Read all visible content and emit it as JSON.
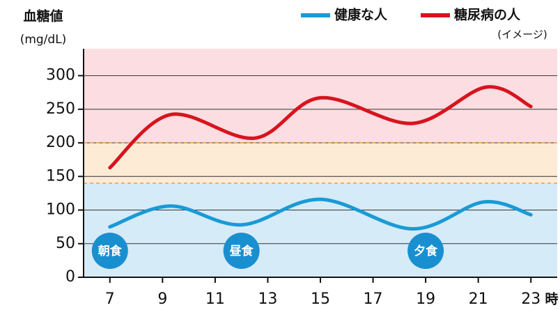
{
  "chart_data": {
    "type": "line",
    "y_label": "血糖値",
    "y_unit": "(mg/dL)",
    "x_unit": "時",
    "note": "(イメージ)",
    "xlim": [
      6,
      24
    ],
    "ylim": [
      0,
      340
    ],
    "xticks": [
      7,
      9,
      11,
      13,
      15,
      17,
      19,
      21,
      23
    ],
    "yticks": [
      0,
      50,
      100,
      150,
      200,
      250,
      300
    ],
    "grid": true,
    "thresholds": [
      140,
      200
    ],
    "band_colors": [
      "#d5ebf8",
      "#fdebd6",
      "#fbdde2"
    ],
    "threshold_color": "#f0a030",
    "series": [
      {
        "name": "健康な人",
        "color": "#1a9ad6",
        "x": [
          7,
          9.3,
          12,
          15,
          18.5,
          21.2,
          23
        ],
        "values": [
          75,
          106,
          78,
          116,
          72,
          112,
          93
        ]
      },
      {
        "name": "糖尿病の人",
        "color": "#d7141e",
        "x": [
          7,
          9.3,
          12.5,
          15,
          18.5,
          21.3,
          23
        ],
        "values": [
          163,
          242,
          207,
          267,
          229,
          283,
          254
        ]
      }
    ],
    "annotations": [
      {
        "text": "朝食",
        "x": 7
      },
      {
        "text": "昼食",
        "x": 12
      },
      {
        "text": "夕食",
        "x": 19
      }
    ],
    "annotation_color": "#1a8fd0"
  }
}
